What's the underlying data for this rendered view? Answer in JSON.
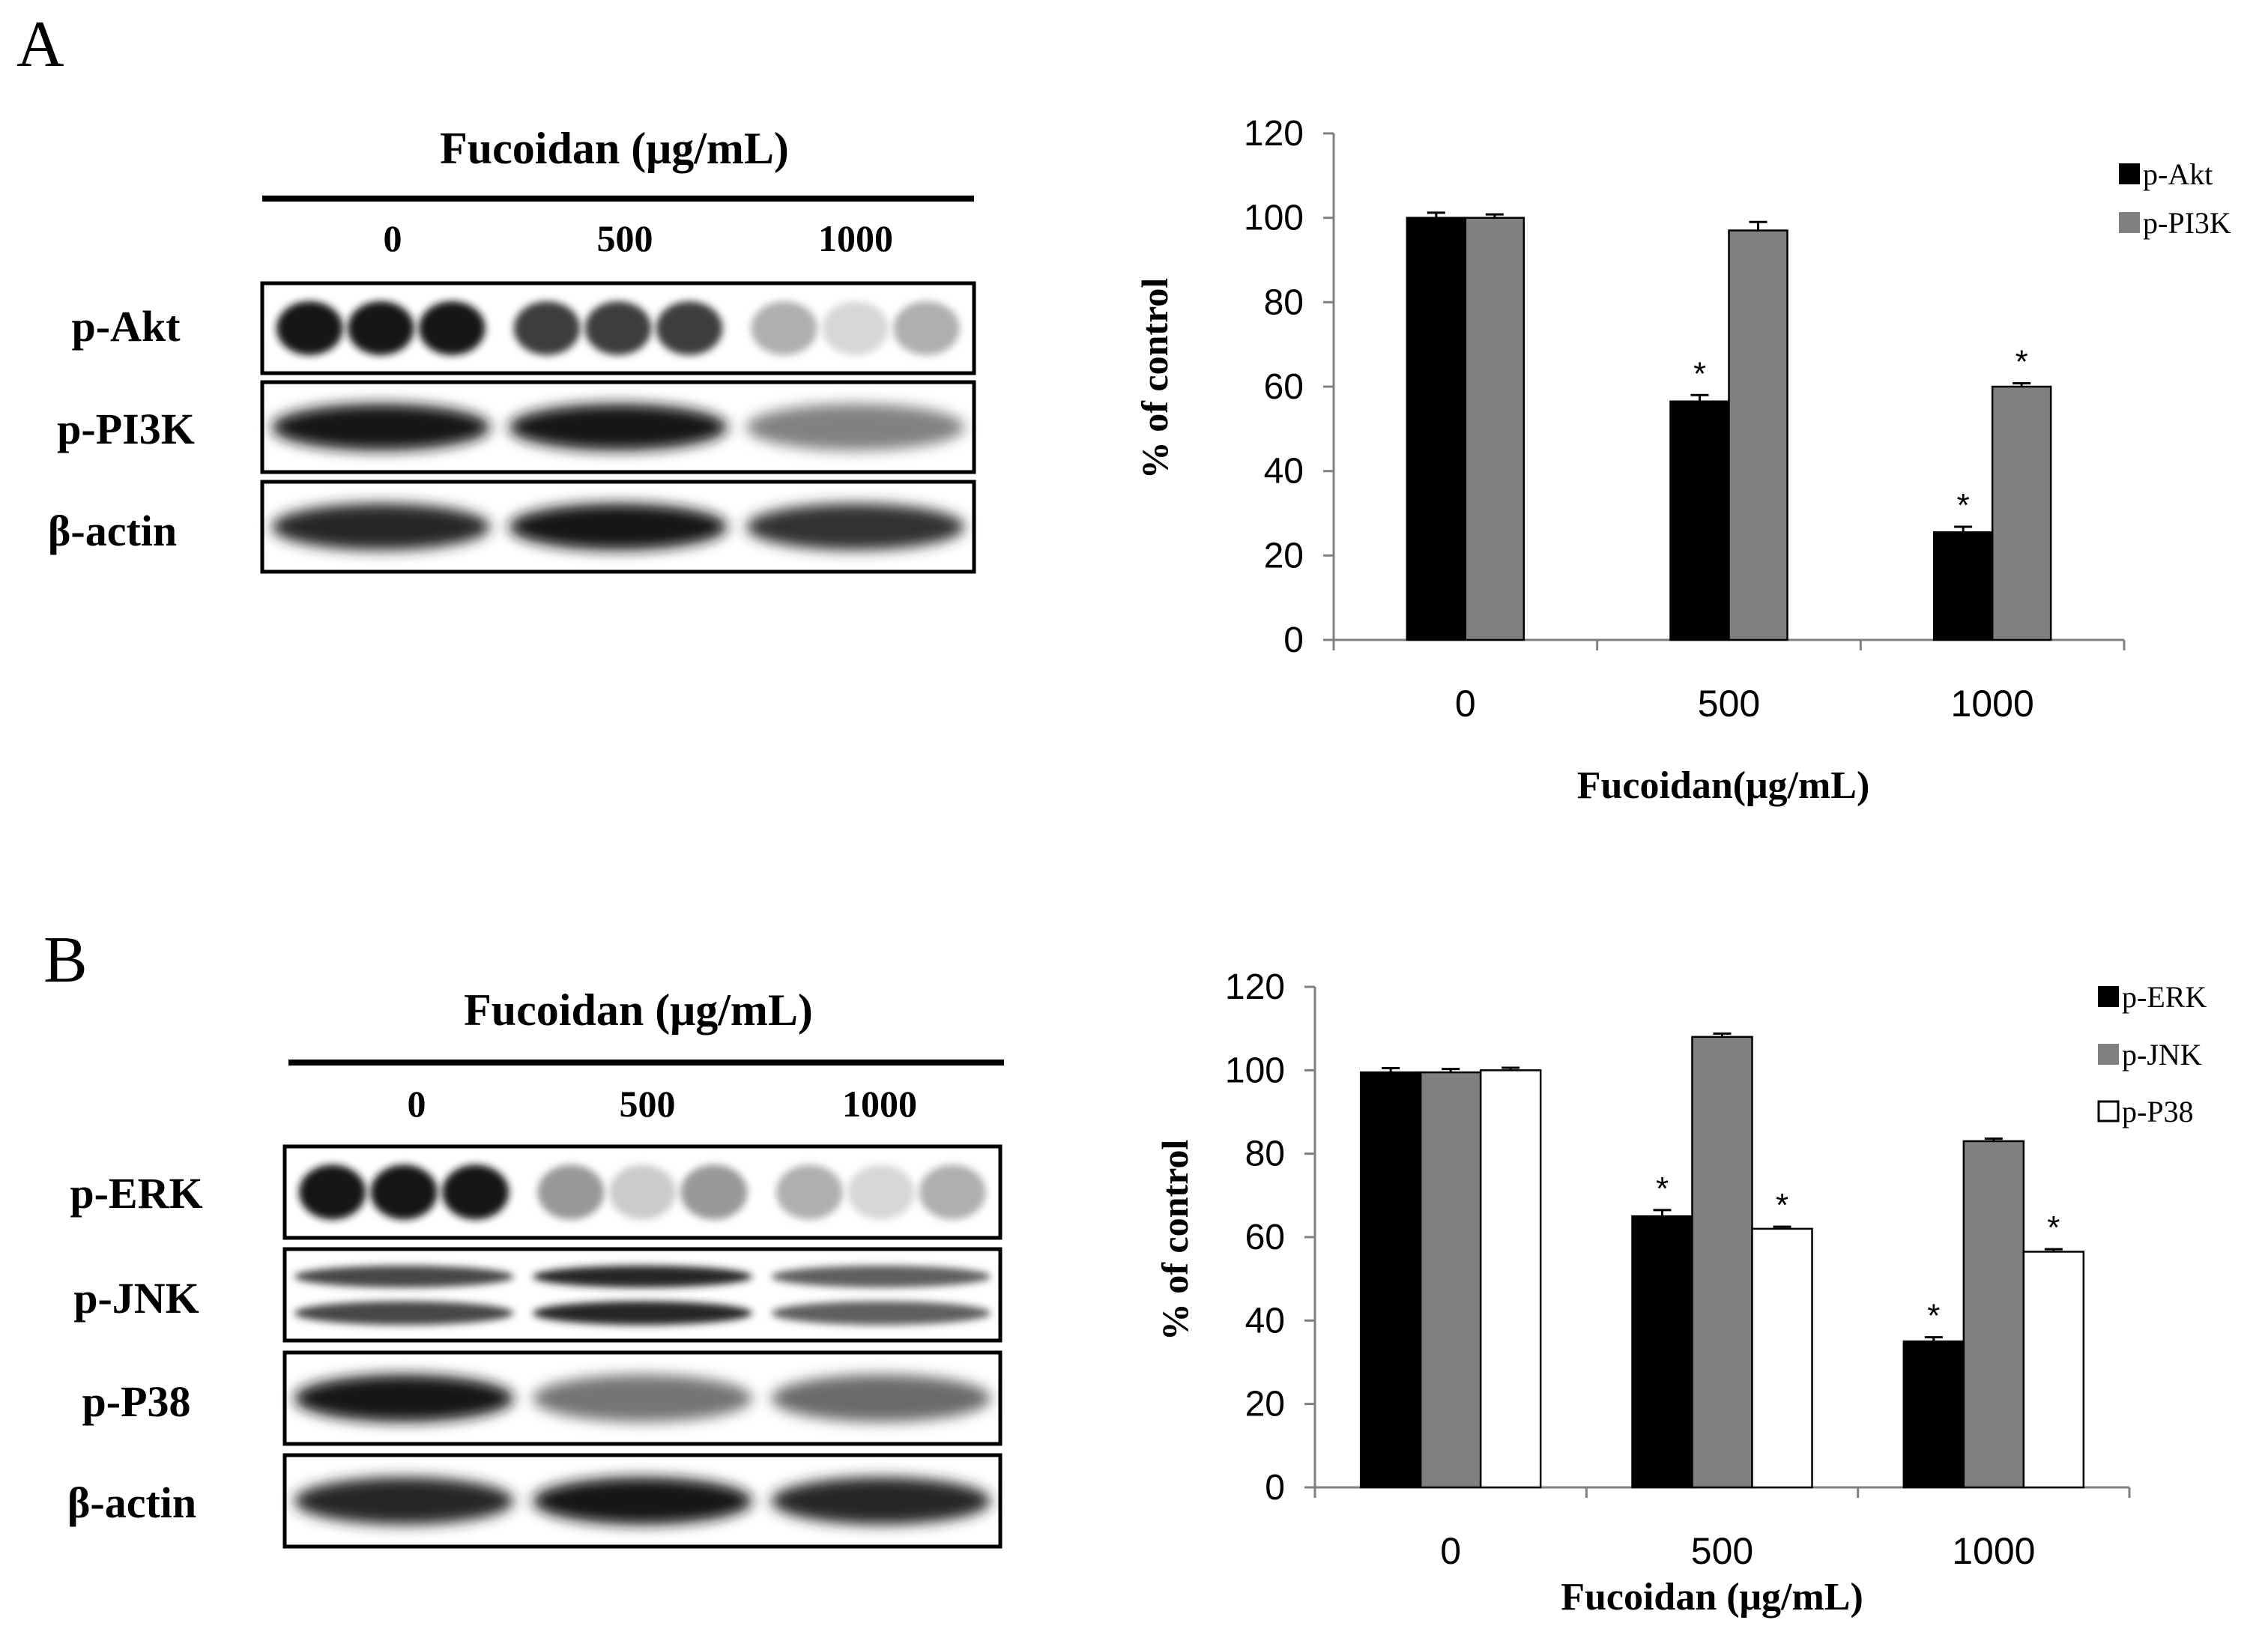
{
  "panels": [
    {
      "letter": "A",
      "blot": {
        "header": "Fucoidan (μg/mL)",
        "lanes": [
          "0",
          "500",
          "1000"
        ],
        "rows": [
          {
            "label": "p-Akt",
            "style": "dots",
            "intensity": [
              1.0,
              0.85,
              0.35
            ]
          },
          {
            "label": "p-PI3K",
            "style": "band",
            "intensity": [
              1.0,
              1.0,
              0.55
            ]
          },
          {
            "label": "β-actin",
            "style": "band",
            "intensity": [
              0.95,
              1.0,
              0.9
            ]
          }
        ]
      },
      "chart_data": {
        "type": "bar",
        "categories": [
          "0",
          "500",
          "1000"
        ],
        "series": [
          {
            "name": "p-Akt",
            "values": [
              100,
              56.5,
              25.5
            ],
            "errors": [
              1.2,
              1.5,
              1.3
            ],
            "color": "#000000"
          },
          {
            "name": "p-PI3K",
            "values": [
              100,
              97,
              60
            ],
            "errors": [
              0.8,
              2.0,
              0.8
            ],
            "color": "#808080"
          }
        ],
        "significance": [
          [
            false,
            true,
            true
          ],
          [
            false,
            false,
            true
          ]
        ],
        "xlabel": "Fucoidan(μg/mL)",
        "ylabel": "% of control",
        "ylim": [
          0,
          120
        ],
        "yticks": [
          0,
          20,
          40,
          60,
          80,
          100,
          120
        ],
        "star": "*",
        "grid": false,
        "legend_position": "top-right"
      }
    },
    {
      "letter": "B",
      "blot": {
        "header": "Fucoidan (μg/mL)",
        "lanes": [
          "0",
          "500",
          "1000"
        ],
        "rows": [
          {
            "label": "p-ERK",
            "style": "dots",
            "intensity": [
              1.0,
              0.45,
              0.35
            ]
          },
          {
            "label": "p-JNK",
            "style": "double",
            "intensity": [
              0.8,
              0.95,
              0.7
            ]
          },
          {
            "label": "p-P38",
            "style": "band",
            "intensity": [
              1.0,
              0.6,
              0.65
            ]
          },
          {
            "label": "β-actin",
            "style": "band",
            "intensity": [
              0.95,
              1.0,
              0.95
            ]
          }
        ]
      },
      "chart_data": {
        "type": "bar",
        "categories": [
          "0",
          "500",
          "1000"
        ],
        "series": [
          {
            "name": "p-ERK",
            "values": [
              99.5,
              65,
              35
            ],
            "errors": [
              1.0,
              1.5,
              1.0
            ],
            "color": "#000000"
          },
          {
            "name": "p-JNK",
            "values": [
              99.5,
              108,
              83
            ],
            "errors": [
              0.8,
              0.8,
              0.6
            ],
            "color": "#808080"
          },
          {
            "name": "p-P38",
            "values": [
              100,
              62,
              56.5
            ],
            "errors": [
              0.6,
              0.5,
              0.6
            ],
            "color": "#ffffff"
          }
        ],
        "significance": [
          [
            false,
            true,
            true
          ],
          [
            false,
            false,
            false
          ],
          [
            false,
            true,
            true
          ]
        ],
        "xlabel": "Fucoidan (μg/mL)",
        "ylabel": "% of control",
        "ylim": [
          0,
          120
        ],
        "yticks": [
          0,
          20,
          40,
          60,
          80,
          100,
          120
        ],
        "star": "*",
        "grid": false,
        "legend_position": "top-right"
      }
    }
  ]
}
